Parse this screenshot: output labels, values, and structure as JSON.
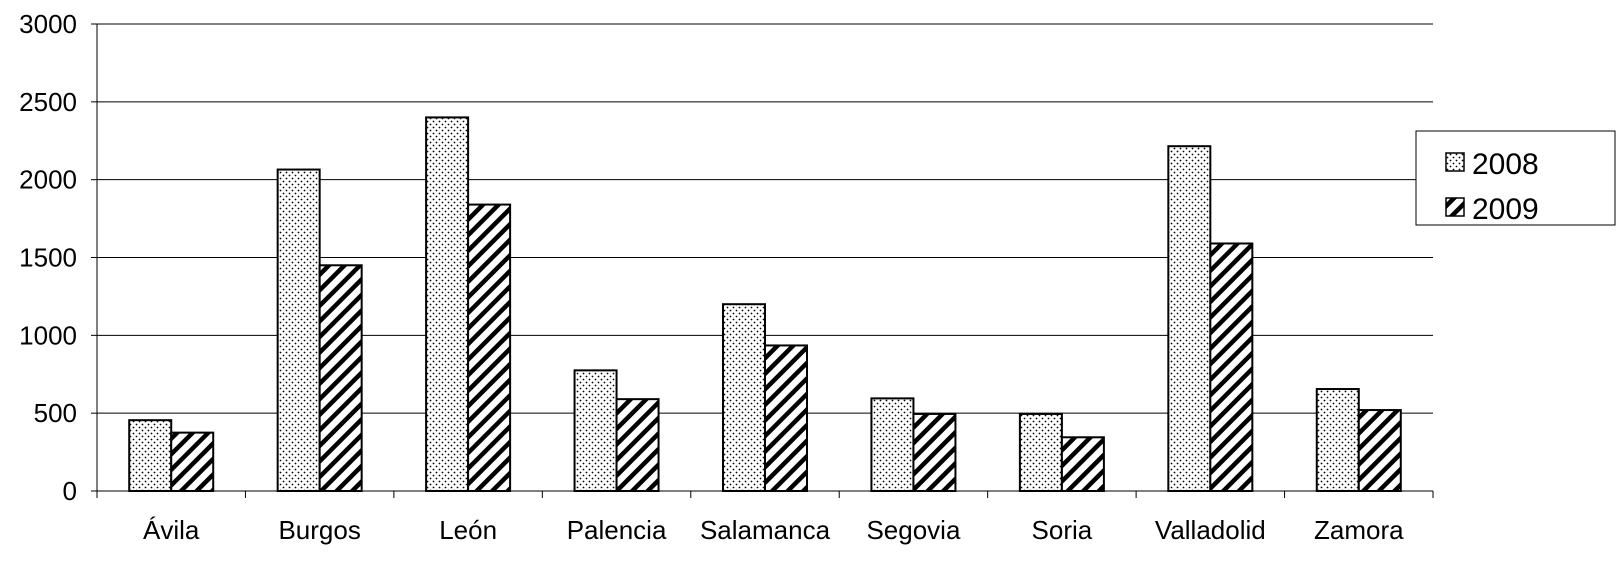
{
  "chart_data": {
    "type": "bar",
    "title": "",
    "xlabel": "",
    "ylabel": "",
    "categories": [
      "Ávila",
      "Burgos",
      "León",
      "Palencia",
      "Salamanca",
      "Segovia",
      "Soria",
      "Valladolid",
      "Zamora"
    ],
    "series": [
      {
        "name": "2008",
        "pattern": "dots",
        "values": [
          455,
          2065,
          2400,
          775,
          1200,
          595,
          495,
          2215,
          655
        ]
      },
      {
        "name": "2009",
        "pattern": "diagonal-hatch",
        "values": [
          375,
          1450,
          1840,
          590,
          935,
          495,
          345,
          1590,
          520
        ]
      }
    ],
    "ylim": [
      0,
      3000
    ],
    "yticks": [
      0,
      500,
      1000,
      1500,
      2000,
      2500,
      3000
    ],
    "grid": true,
    "legend_position": "right",
    "colors": {
      "bar_stroke": "#000000",
      "fill": "#ffffff",
      "grid": "#000000"
    }
  }
}
